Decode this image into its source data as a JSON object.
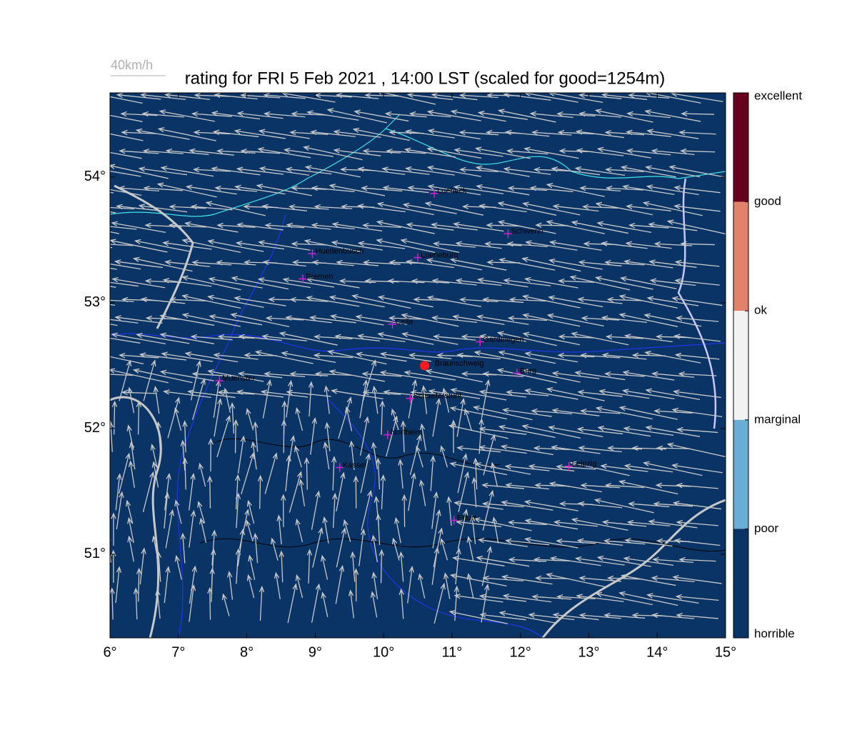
{
  "title": "rating for FRI 5 Feb 2021 , 14:00 LST (scaled for good=1254m)",
  "wind_scale": "40km/h",
  "map": {
    "xlim": [
      6,
      15
    ],
    "ylim": [
      50.335,
      54.67
    ],
    "xticks": [
      {
        "value": 6,
        "label": "6°"
      },
      {
        "value": 7,
        "label": "7°"
      },
      {
        "value": 8,
        "label": "8°"
      },
      {
        "value": 9,
        "label": "9°"
      },
      {
        "value": 10,
        "label": "10°"
      },
      {
        "value": 11,
        "label": "11°"
      },
      {
        "value": 12,
        "label": "12°"
      },
      {
        "value": 13,
        "label": "13°"
      },
      {
        "value": 14,
        "label": "14°"
      },
      {
        "value": 15,
        "label": "15°"
      }
    ],
    "yticks": [
      {
        "value": 51,
        "label": "51°"
      },
      {
        "value": 52,
        "label": "52°"
      },
      {
        "value": 53,
        "label": "53°"
      },
      {
        "value": 54,
        "label": "54°"
      }
    ],
    "background": "#0b3466",
    "cities": [
      {
        "name": "Luebeck",
        "lon": 10.74,
        "lat": 53.87
      },
      {
        "name": "Schwerin",
        "lon": 11.82,
        "lat": 53.55
      },
      {
        "name": "Huettenbusch",
        "lon": 8.96,
        "lat": 53.39
      },
      {
        "name": "Lueneburg",
        "lon": 10.5,
        "lat": 53.36
      },
      {
        "name": "Bremen",
        "lon": 8.82,
        "lat": 53.19
      },
      {
        "name": "Celle",
        "lon": 10.13,
        "lat": 52.83
      },
      {
        "name": "Gardelegen",
        "lon": 11.41,
        "lat": 52.69
      },
      {
        "name": "Burg",
        "lon": 11.95,
        "lat": 52.44
      },
      {
        "name": "Muenster",
        "lon": 7.6,
        "lat": 52.38
      },
      {
        "name": "Schaeferstuhl",
        "lon": 10.39,
        "lat": 52.24
      },
      {
        "name": "Northeim",
        "lon": 10.06,
        "lat": 51.95
      },
      {
        "name": "Kassel",
        "lon": 9.36,
        "lat": 51.69
      },
      {
        "name": "Leipzig",
        "lon": 12.71,
        "lat": 51.7
      },
      {
        "name": "Erfurt",
        "lon": 11.03,
        "lat": 51.27
      }
    ],
    "site": {
      "name": "Braunschweig",
      "lon": 10.6,
      "lat": 52.5,
      "color": "#ff1a1a"
    }
  },
  "colorbar": {
    "labels": [
      "excellent",
      "good",
      "ok",
      "marginal",
      "poor",
      "horrible"
    ],
    "colors": [
      "#67001f",
      "#e3826a",
      "#f2f2f2",
      "#6aaed6",
      "#0b3466"
    ]
  }
}
